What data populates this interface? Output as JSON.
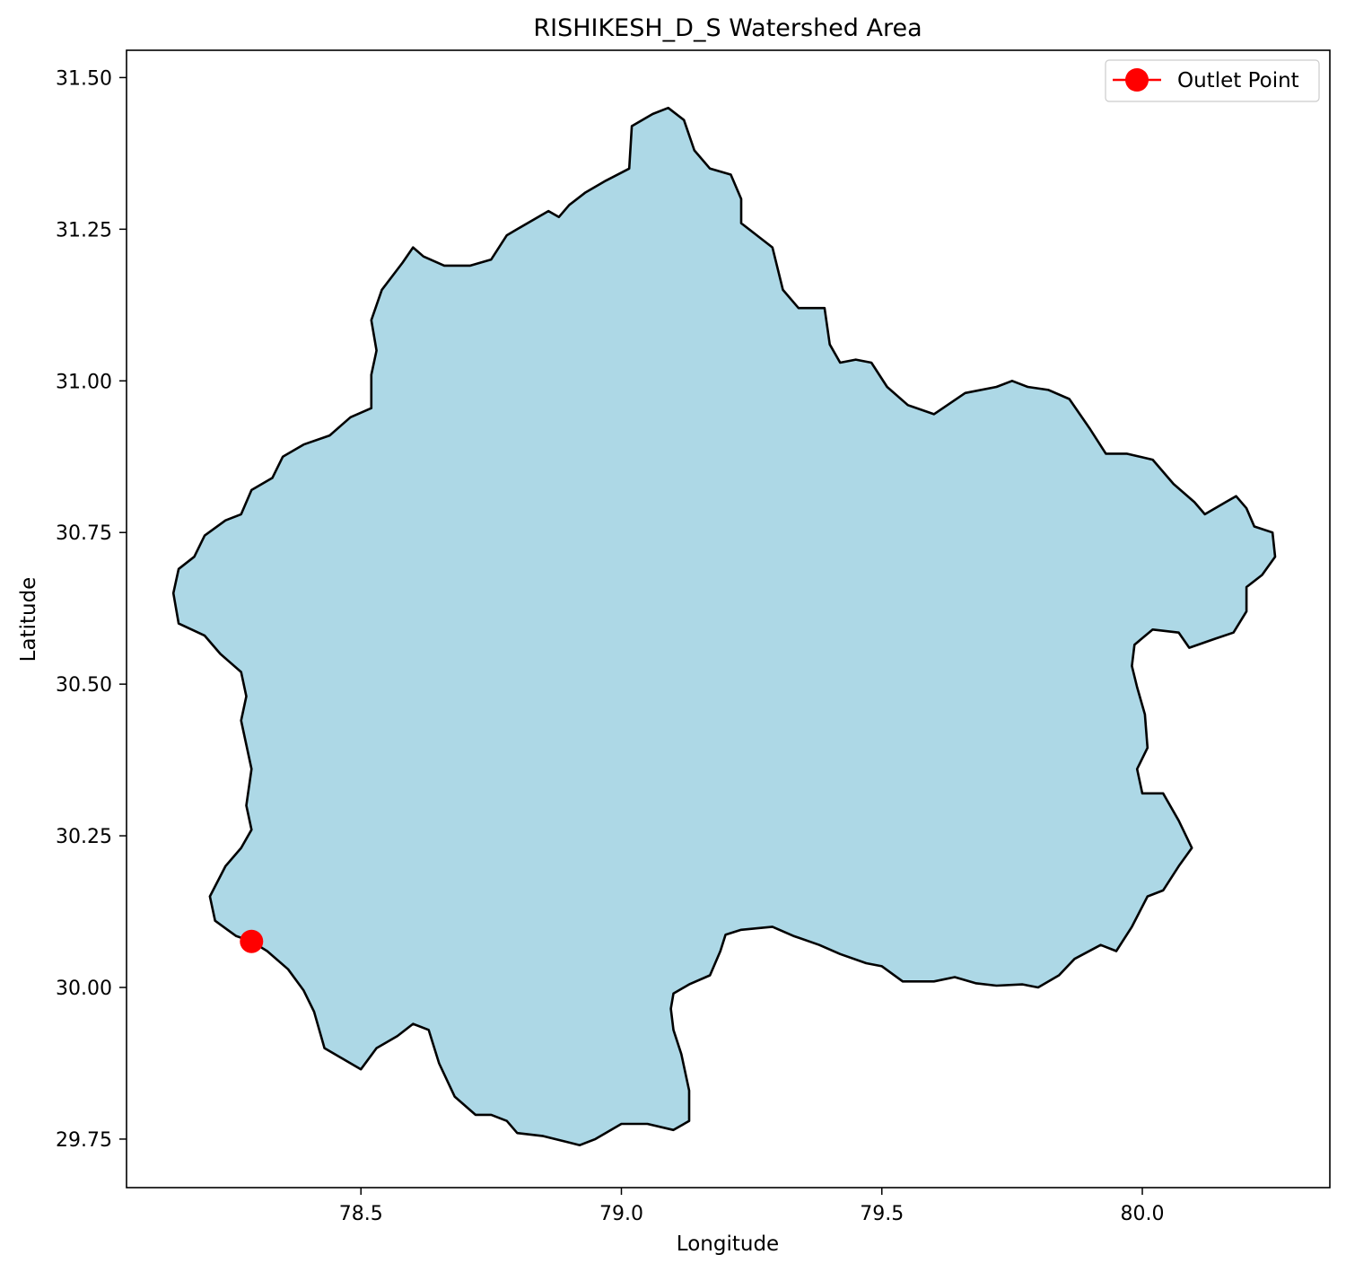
{
  "title": "RISHIKESH_D_S Watershed Area",
  "xlabel": "Longitude",
  "ylabel": "Latitude",
  "legend": {
    "label": "Outlet Point",
    "location": "upper-right"
  },
  "colors": {
    "watershed_fill": "#add8e6",
    "watershed_edge": "#000000",
    "outlet": "#ff0000"
  },
  "chart_data": {
    "type": "map",
    "title": "RISHIKESH_D_S Watershed Area",
    "xlabel": "Longitude",
    "ylabel": "Latitude",
    "xlim": [
      78.05,
      80.36
    ],
    "ylim": [
      29.67,
      31.545
    ],
    "xticks": [
      78.5,
      79.0,
      79.5,
      80.0
    ],
    "xtick_labels": [
      "78.5",
      "79.0",
      "79.5",
      "80.0"
    ],
    "yticks": [
      29.75,
      30.0,
      30.25,
      30.5,
      30.75,
      31.0,
      31.25,
      31.5
    ],
    "ytick_labels": [
      "29.75",
      "30.00",
      "30.25",
      "30.50",
      "30.75",
      "31.00",
      "31.25",
      "31.50"
    ],
    "grid": false,
    "outlet_point": {
      "name": "Outlet Point",
      "lon": 78.29,
      "lat": 30.076
    },
    "watershed_boundary": [
      [
        78.29,
        30.076
      ],
      [
        78.32,
        30.06
      ],
      [
        78.36,
        30.03
      ],
      [
        78.39,
        29.995
      ],
      [
        78.41,
        29.96
      ],
      [
        78.43,
        29.9
      ],
      [
        78.47,
        29.88
      ],
      [
        78.5,
        29.865
      ],
      [
        78.53,
        29.9
      ],
      [
        78.57,
        29.92
      ],
      [
        78.6,
        29.94
      ],
      [
        78.63,
        29.93
      ],
      [
        78.65,
        29.875
      ],
      [
        78.68,
        29.82
      ],
      [
        78.72,
        29.79
      ],
      [
        78.75,
        29.79
      ],
      [
        78.78,
        29.78
      ],
      [
        78.8,
        29.76
      ],
      [
        78.85,
        29.755
      ],
      [
        78.92,
        29.74
      ],
      [
        78.95,
        29.75
      ],
      [
        79.0,
        29.775
      ],
      [
        79.05,
        29.775
      ],
      [
        79.1,
        29.765
      ],
      [
        79.13,
        29.78
      ],
      [
        79.13,
        29.83
      ],
      [
        79.115,
        29.89
      ],
      [
        79.1,
        29.93
      ],
      [
        79.095,
        29.965
      ],
      [
        79.1,
        29.99
      ],
      [
        79.13,
        30.005
      ],
      [
        79.17,
        30.02
      ],
      [
        79.19,
        30.06
      ],
      [
        79.2,
        30.087
      ],
      [
        79.23,
        30.095
      ],
      [
        79.29,
        30.1
      ],
      [
        79.33,
        30.085
      ],
      [
        79.38,
        30.07
      ],
      [
        79.42,
        30.055
      ],
      [
        79.47,
        30.04
      ],
      [
        79.5,
        30.035
      ],
      [
        79.54,
        30.01
      ],
      [
        79.6,
        30.01
      ],
      [
        79.64,
        30.017
      ],
      [
        79.68,
        30.007
      ],
      [
        79.72,
        30.003
      ],
      [
        79.77,
        30.005
      ],
      [
        79.8,
        30.0
      ],
      [
        79.84,
        30.02
      ],
      [
        79.87,
        30.047
      ],
      [
        79.92,
        30.07
      ],
      [
        79.95,
        30.06
      ],
      [
        79.98,
        30.1
      ],
      [
        80.01,
        30.15
      ],
      [
        80.04,
        30.16
      ],
      [
        80.07,
        30.2
      ],
      [
        80.095,
        30.23
      ],
      [
        80.07,
        30.275
      ],
      [
        80.04,
        30.32
      ],
      [
        80.0,
        30.32
      ],
      [
        79.99,
        30.36
      ],
      [
        80.01,
        30.395
      ],
      [
        80.005,
        30.45
      ],
      [
        79.99,
        30.495
      ],
      [
        79.98,
        30.53
      ],
      [
        79.985,
        30.565
      ],
      [
        80.02,
        30.59
      ],
      [
        80.07,
        30.585
      ],
      [
        80.09,
        30.56
      ],
      [
        80.14,
        30.575
      ],
      [
        80.175,
        30.585
      ],
      [
        80.2,
        30.62
      ],
      [
        80.2,
        30.66
      ],
      [
        80.23,
        30.68
      ],
      [
        80.255,
        30.71
      ],
      [
        80.25,
        30.75
      ],
      [
        80.215,
        30.76
      ],
      [
        80.2,
        30.79
      ],
      [
        80.18,
        30.81
      ],
      [
        80.16,
        30.8
      ],
      [
        80.12,
        30.78
      ],
      [
        80.1,
        30.8
      ],
      [
        80.06,
        30.83
      ],
      [
        80.02,
        30.87
      ],
      [
        79.97,
        30.88
      ],
      [
        79.93,
        30.88
      ],
      [
        79.9,
        30.92
      ],
      [
        79.86,
        30.97
      ],
      [
        79.82,
        30.985
      ],
      [
        79.78,
        30.99
      ],
      [
        79.75,
        31.0
      ],
      [
        79.72,
        30.99
      ],
      [
        79.66,
        30.98
      ],
      [
        79.6,
        30.945
      ],
      [
        79.55,
        30.96
      ],
      [
        79.51,
        30.99
      ],
      [
        79.48,
        31.03
      ],
      [
        79.45,
        31.035
      ],
      [
        79.42,
        31.03
      ],
      [
        79.4,
        31.06
      ],
      [
        79.39,
        31.12
      ],
      [
        79.34,
        31.12
      ],
      [
        79.31,
        31.15
      ],
      [
        79.29,
        31.22
      ],
      [
        79.26,
        31.24
      ],
      [
        79.23,
        31.26
      ],
      [
        79.23,
        31.3
      ],
      [
        79.21,
        31.34
      ],
      [
        79.17,
        31.35
      ],
      [
        79.14,
        31.38
      ],
      [
        79.12,
        31.43
      ],
      [
        79.09,
        31.45
      ],
      [
        79.06,
        31.44
      ],
      [
        79.02,
        31.42
      ],
      [
        79.015,
        31.35
      ],
      [
        78.97,
        31.33
      ],
      [
        78.93,
        31.31
      ],
      [
        78.9,
        31.29
      ],
      [
        78.88,
        31.27
      ],
      [
        78.86,
        31.28
      ],
      [
        78.8,
        31.25
      ],
      [
        78.78,
        31.24
      ],
      [
        78.75,
        31.2
      ],
      [
        78.71,
        31.19
      ],
      [
        78.66,
        31.19
      ],
      [
        78.62,
        31.205
      ],
      [
        78.6,
        31.22
      ],
      [
        78.58,
        31.195
      ],
      [
        78.54,
        31.15
      ],
      [
        78.52,
        31.1
      ],
      [
        78.53,
        31.05
      ],
      [
        78.52,
        31.01
      ],
      [
        78.52,
        30.955
      ],
      [
        78.48,
        30.94
      ],
      [
        78.44,
        30.91
      ],
      [
        78.39,
        30.895
      ],
      [
        78.35,
        30.875
      ],
      [
        78.33,
        30.84
      ],
      [
        78.29,
        30.82
      ],
      [
        78.27,
        30.78
      ],
      [
        78.24,
        30.77
      ],
      [
        78.2,
        30.745
      ],
      [
        78.18,
        30.71
      ],
      [
        78.15,
        30.69
      ],
      [
        78.14,
        30.65
      ],
      [
        78.15,
        30.6
      ],
      [
        78.2,
        30.58
      ],
      [
        78.23,
        30.55
      ],
      [
        78.27,
        30.52
      ],
      [
        78.28,
        30.48
      ],
      [
        78.27,
        30.44
      ],
      [
        78.28,
        30.4
      ],
      [
        78.29,
        30.36
      ],
      [
        78.28,
        30.3
      ],
      [
        78.29,
        30.26
      ],
      [
        78.27,
        30.23
      ],
      [
        78.24,
        30.2
      ],
      [
        78.21,
        30.15
      ],
      [
        78.22,
        30.11
      ],
      [
        78.26,
        30.085
      ],
      [
        78.29,
        30.076
      ]
    ]
  }
}
